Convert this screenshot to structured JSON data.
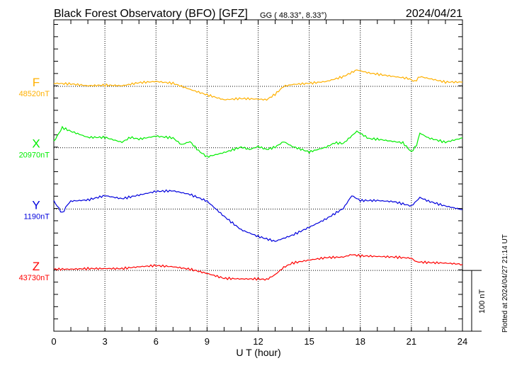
{
  "chart_data": {
    "type": "line",
    "title": "Black Forest Observatory (BFO)  [GFZ]",
    "coord_label": "GG ( 48.33°,   8.33°)",
    "date": "2024/04/21",
    "xlabel": "U T (hour)",
    "xlim": [
      0,
      24
    ],
    "xticks": [
      "0",
      "3",
      "6",
      "9",
      "12",
      "15",
      "18",
      "21",
      "24"
    ],
    "scale_label": "100 nT",
    "scale_nT": 100,
    "plotted_note": "Plotted at 2024/04/27 21:14 UT",
    "grid": true,
    "series": [
      {
        "name": "F",
        "baseline_label": "48520nT",
        "color": "#ffb000",
        "offset_index": 0,
        "x": [
          0,
          1,
          2,
          3,
          4,
          5,
          6,
          7,
          8,
          9,
          10,
          11,
          12,
          12.5,
          13,
          13.5,
          14,
          15,
          16,
          17,
          17.8,
          18.5,
          19,
          20,
          20.8,
          21.2,
          21.5,
          22,
          23,
          24
        ],
        "y": [
          5,
          4,
          1,
          2,
          1,
          6,
          8,
          5,
          -5,
          -14,
          -22,
          -20,
          -21,
          -22,
          -13,
          0,
          3,
          5,
          8,
          16,
          27,
          22,
          20,
          16,
          13,
          8,
          16,
          13,
          7,
          7
        ]
      },
      {
        "name": "X",
        "baseline_label": "20970nT",
        "color": "#00ee00",
        "offset_index": 1,
        "x": [
          0,
          0.5,
          1,
          2,
          3,
          4,
          4.5,
          5,
          6,
          7,
          7.5,
          8,
          8.5,
          9,
          10,
          11,
          11.5,
          12,
          12.5,
          13,
          13.5,
          14,
          15,
          16,
          16.5,
          17,
          17.8,
          18.5,
          19,
          20,
          20.5,
          21,
          21.3,
          21.5,
          22,
          23,
          24
        ],
        "y": [
          10,
          33,
          27,
          17,
          17,
          9,
          17,
          14,
          19,
          16,
          5,
          10,
          -5,
          -15,
          -8,
          1,
          -3,
          2,
          -3,
          1,
          10,
          2,
          -7,
          1,
          8,
          7,
          27,
          15,
          14,
          10,
          8,
          -7,
          4,
          24,
          16,
          9,
          16
        ]
      },
      {
        "name": "Y",
        "baseline_label": "1190nT",
        "color": "#0000dd",
        "offset_index": 2,
        "x": [
          0,
          0.5,
          0.8,
          1,
          2,
          3,
          4,
          5,
          6,
          7,
          8,
          9,
          10,
          11,
          12,
          13,
          14,
          15,
          16,
          17,
          17.5,
          18,
          19,
          20,
          21,
          21.5,
          22,
          23,
          24
        ],
        "y": [
          13,
          -7,
          7,
          13,
          15,
          22,
          17,
          23,
          29,
          30,
          24,
          13,
          -12,
          -34,
          -45,
          -53,
          -43,
          -30,
          -16,
          1,
          22,
          14,
          14,
          12,
          5,
          19,
          13,
          5,
          -1
        ]
      },
      {
        "name": "Z",
        "baseline_label": "43730nT",
        "color": "#ff0000",
        "offset_index": 3,
        "x": [
          0,
          1,
          2,
          3,
          4,
          5,
          6,
          7,
          8,
          9,
          10,
          11,
          12,
          12.5,
          13,
          13.5,
          14,
          15,
          16,
          17,
          17.5,
          18,
          19,
          20,
          21,
          21.3,
          22,
          23,
          24
        ],
        "y": [
          2,
          2,
          3,
          3,
          3,
          6,
          8,
          6,
          2,
          -5,
          -13,
          -14,
          -14,
          -15,
          -7,
          5,
          12,
          17,
          21,
          22,
          26,
          24,
          23,
          22,
          20,
          14,
          13,
          12,
          10
        ]
      }
    ]
  }
}
